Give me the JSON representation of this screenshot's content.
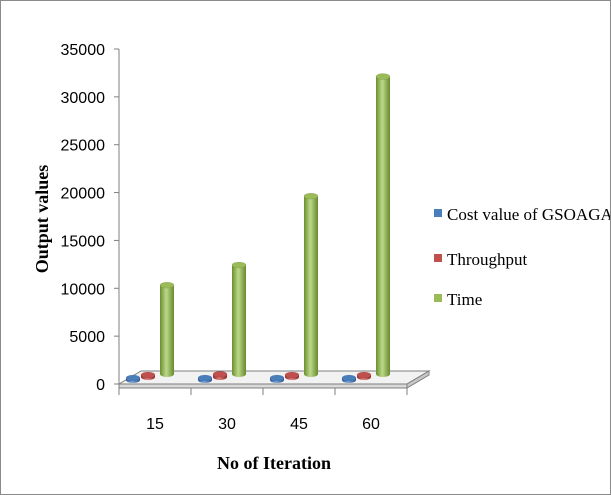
{
  "chart_data": {
    "type": "bar",
    "subtype": "3d-clustered-cylinder",
    "title": "",
    "xlabel": "No of Iteration",
    "ylabel": "Output values",
    "categories": [
      "15",
      "30",
      "45",
      "60"
    ],
    "ylim": [
      0,
      35000
    ],
    "yticks": [
      "0",
      "5000",
      "10000",
      "15000",
      "20000",
      "25000",
      "30000",
      "35000"
    ],
    "grid": false,
    "legend_position": "right",
    "series": [
      {
        "name": "Cost value of GSOAGA",
        "color": "#4a7ebb",
        "values": [
          5,
          5,
          5,
          5
        ]
      },
      {
        "name": "Throughput",
        "color": "#c0504d",
        "values": [
          600,
          700,
          550,
          500
        ]
      },
      {
        "name": "Time",
        "color": "#9bbb59",
        "values": [
          9700,
          11800,
          19000,
          31500
        ]
      }
    ]
  }
}
